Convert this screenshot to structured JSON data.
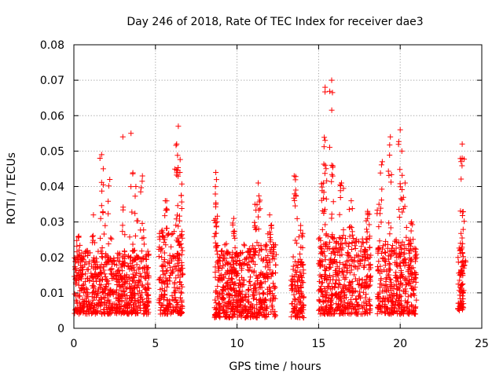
{
  "chart_data": {
    "type": "scatter",
    "title": "Day 246 of 2018, Rate Of TEC Index for receiver dae3",
    "xlabel": "GPS time / hours",
    "ylabel": "ROTI / TECUs",
    "xlim": [
      0,
      25
    ],
    "ylim": [
      0,
      0.08
    ],
    "xticks": [
      "0",
      "5",
      "10",
      "15",
      "20",
      "25"
    ],
    "yticks": [
      "0",
      "0.01",
      "0.02",
      "0.03",
      "0.04",
      "0.05",
      "0.06",
      "0.07",
      "0.08"
    ],
    "grid": true,
    "legend": "none",
    "marker": "plus",
    "color": "#ff0000",
    "clusters": [
      {
        "x": [
          0.0,
          4.6
        ],
        "y": [
          0.004,
          0.022
        ],
        "peaks": [
          [
            0.3,
            0.026
          ],
          [
            1.2,
            0.032
          ],
          [
            1.7,
            0.049
          ],
          [
            1.8,
            0.045
          ],
          [
            2.2,
            0.042
          ],
          [
            3.0,
            0.054
          ],
          [
            3.5,
            0.055
          ],
          [
            4.2,
            0.043
          ],
          [
            3.8,
            0.04
          ]
        ]
      },
      {
        "x": [
          5.2,
          6.7
        ],
        "y": [
          0.004,
          0.028
        ],
        "peaks": [
          [
            5.6,
            0.036
          ],
          [
            6.4,
            0.057
          ],
          [
            6.3,
            0.052
          ],
          [
            6.5,
            0.044
          ]
        ]
      },
      {
        "x": [
          8.6,
          12.4
        ],
        "y": [
          0.003,
          0.024
        ],
        "peaks": [
          [
            8.7,
            0.044
          ],
          [
            8.7,
            0.035
          ],
          [
            9.8,
            0.031
          ],
          [
            11.3,
            0.041
          ],
          [
            11.1,
            0.035
          ],
          [
            12.0,
            0.032
          ]
        ]
      },
      {
        "x": [
          13.3,
          14.1
        ],
        "y": [
          0.003,
          0.019
        ],
        "peaks": [
          [
            13.5,
            0.043
          ],
          [
            13.6,
            0.039
          ],
          [
            13.9,
            0.029
          ]
        ]
      },
      {
        "x": [
          15.0,
          18.2
        ],
        "y": [
          0.004,
          0.026
        ],
        "peaks": [
          [
            15.4,
            0.068
          ],
          [
            15.8,
            0.07
          ],
          [
            15.4,
            0.053
          ],
          [
            15.8,
            0.046
          ],
          [
            16.4,
            0.041
          ],
          [
            15.3,
            0.041
          ],
          [
            17.0,
            0.036
          ],
          [
            18.0,
            0.033
          ]
        ]
      },
      {
        "x": [
          18.6,
          21.0
        ],
        "y": [
          0.004,
          0.025
        ],
        "peaks": [
          [
            19.4,
            0.054
          ],
          [
            20.0,
            0.056
          ],
          [
            20.1,
            0.05
          ],
          [
            18.9,
            0.047
          ],
          [
            20.3,
            0.041
          ],
          [
            18.7,
            0.035
          ],
          [
            20.7,
            0.03
          ]
        ]
      },
      {
        "x": [
          23.5,
          23.9
        ],
        "y": [
          0.005,
          0.02
        ],
        "peaks": [
          [
            23.8,
            0.052
          ],
          [
            23.8,
            0.048
          ],
          [
            23.7,
            0.024
          ],
          [
            23.9,
            0.017
          ]
        ]
      }
    ]
  }
}
